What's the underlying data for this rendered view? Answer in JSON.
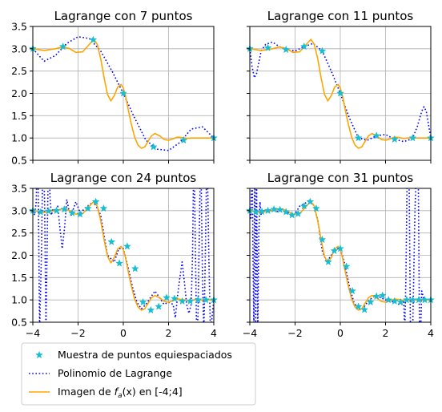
{
  "colors": {
    "samples": "#17becf",
    "lagrange": "#0000ff",
    "function": "#ffa500",
    "grid": "#b0b0b0"
  },
  "legend": {
    "placement": "bottom-left",
    "entries": [
      {
        "key": "samples",
        "label": "Muestra de puntos equiespaciados"
      },
      {
        "key": "lagrange",
        "label": "Polinomio de Lagrange"
      },
      {
        "key": "function",
        "label_prefix": "Imagen de ",
        "label_func": "f",
        "label_sub": "a",
        "label_suffix": "(x) en [-4;4]"
      }
    ]
  },
  "chart_data": [
    {
      "type": "line",
      "title": "Lagrange con 7 puntos",
      "xlim": [
        -4,
        4
      ],
      "ylim": [
        0.5,
        3.5
      ],
      "grid": true,
      "xticks": [
        "-4",
        "-2",
        "0",
        "2",
        "4"
      ],
      "xtick_values": [
        -4,
        -2,
        0,
        2,
        4
      ],
      "show_xticklabels": false,
      "yticks": [
        "0.5",
        "1.0",
        "1.5",
        "2.0",
        "2.5",
        "3.0",
        "3.5"
      ],
      "ytick_values": [
        0.5,
        1.0,
        1.5,
        2.0,
        2.5,
        3.0,
        3.5
      ],
      "show_yticklabels": true,
      "samples": {
        "x": [
          -4.0,
          -2.667,
          -1.333,
          0.0,
          1.333,
          2.667,
          4.0
        ],
        "y": [
          3.0,
          3.05,
          3.2,
          2.0,
          0.8,
          0.95,
          1.0
        ]
      },
      "lagrange": {
        "x": [
          -4.0,
          -3.5,
          -3.0,
          -2.5,
          -2.0,
          -1.5,
          -1.0,
          -0.5,
          0.0,
          0.5,
          1.0,
          1.5,
          2.0,
          2.5,
          3.0,
          3.5,
          4.0
        ],
        "y": [
          3.0,
          2.72,
          2.85,
          3.12,
          3.27,
          3.23,
          2.95,
          2.5,
          2.0,
          1.45,
          0.95,
          0.75,
          0.72,
          0.9,
          1.2,
          1.25,
          1.0
        ]
      },
      "function": {
        "x": [
          -4.0,
          -3.5,
          -3.0,
          -2.7,
          -2.4,
          -2.1,
          -1.8,
          -1.5,
          -1.3,
          -1.15,
          -1.0,
          -0.85,
          -0.7,
          -0.55,
          -0.4,
          -0.25,
          -0.1,
          0.0,
          0.1,
          0.2,
          0.35,
          0.5,
          0.65,
          0.8,
          0.95,
          1.1,
          1.25,
          1.4,
          1.6,
          1.8,
          2.0,
          2.2,
          2.4,
          2.6,
          2.8,
          3.0,
          3.3,
          3.6,
          4.0
        ],
        "y": [
          3.0,
          2.96,
          3.0,
          3.04,
          3.01,
          2.92,
          2.93,
          3.1,
          3.21,
          3.1,
          2.78,
          2.35,
          1.98,
          1.83,
          1.95,
          2.14,
          2.2,
          2.12,
          1.94,
          1.68,
          1.32,
          1.02,
          0.84,
          0.77,
          0.8,
          0.93,
          1.05,
          1.1,
          1.05,
          0.97,
          0.95,
          0.98,
          1.02,
          1.01,
          0.99,
          1.0,
          1.0,
          1.0,
          1.0
        ]
      }
    },
    {
      "type": "line",
      "title": "Lagrange con 11 puntos",
      "xlim": [
        -4,
        4
      ],
      "ylim": [
        0.5,
        3.5
      ],
      "grid": true,
      "xticks": [
        "-4",
        "-2",
        "0",
        "2",
        "4"
      ],
      "xtick_values": [
        -4,
        -2,
        0,
        2,
        4
      ],
      "show_xticklabels": false,
      "yticks": [
        "0.5",
        "1.0",
        "1.5",
        "2.0",
        "2.5",
        "3.0",
        "3.5"
      ],
      "ytick_values": [
        0.5,
        1.0,
        1.5,
        2.0,
        2.5,
        3.0,
        3.5
      ],
      "show_yticklabels": false,
      "samples": {
        "x": [
          -4.0,
          -3.2,
          -2.4,
          -1.6,
          -0.8,
          0.0,
          0.8,
          1.6,
          2.4,
          3.2,
          4.0
        ],
        "y": [
          3.0,
          3.02,
          2.98,
          3.05,
          2.95,
          2.0,
          1.0,
          1.05,
          0.97,
          1.0,
          1.0
        ]
      },
      "lagrange": {
        "x": [
          -4.0,
          -3.9,
          -3.8,
          -3.7,
          -3.6,
          -3.5,
          -3.3,
          -3.0,
          -2.7,
          -2.4,
          -2.0,
          -1.6,
          -1.2,
          -0.8,
          -0.4,
          0.0,
          0.4,
          0.8,
          1.2,
          1.6,
          2.0,
          2.4,
          2.8,
          3.0,
          3.2,
          3.4,
          3.6,
          3.7,
          3.8,
          3.9,
          4.0
        ],
        "y": [
          3.0,
          2.6,
          2.35,
          2.45,
          2.7,
          2.95,
          3.1,
          3.15,
          3.05,
          2.98,
          2.95,
          3.05,
          3.12,
          2.95,
          2.5,
          2.0,
          1.45,
          1.0,
          0.95,
          1.05,
          1.08,
          0.97,
          0.92,
          0.95,
          1.0,
          1.25,
          1.6,
          1.7,
          1.6,
          1.3,
          1.0
        ]
      },
      "function": {
        "x": [
          -4.0,
          -3.5,
          -3.0,
          -2.7,
          -2.4,
          -2.1,
          -1.8,
          -1.5,
          -1.3,
          -1.15,
          -1.0,
          -0.85,
          -0.7,
          -0.55,
          -0.4,
          -0.25,
          -0.1,
          0.0,
          0.1,
          0.2,
          0.35,
          0.5,
          0.65,
          0.8,
          0.95,
          1.1,
          1.25,
          1.4,
          1.6,
          1.8,
          2.0,
          2.2,
          2.4,
          2.6,
          2.8,
          3.0,
          3.3,
          3.6,
          4.0
        ],
        "y": [
          3.0,
          2.96,
          3.0,
          3.04,
          3.01,
          2.92,
          2.93,
          3.1,
          3.21,
          3.1,
          2.78,
          2.35,
          1.98,
          1.83,
          1.95,
          2.14,
          2.2,
          2.12,
          1.94,
          1.68,
          1.32,
          1.02,
          0.84,
          0.77,
          0.8,
          0.93,
          1.05,
          1.1,
          1.05,
          0.97,
          0.95,
          0.98,
          1.02,
          1.01,
          0.99,
          1.0,
          1.0,
          1.0,
          1.0
        ]
      }
    },
    {
      "type": "line",
      "title": "Lagrange con 24 puntos",
      "xlim": [
        -4,
        4
      ],
      "ylim": [
        0.5,
        3.5
      ],
      "grid": true,
      "xticks": [
        "−4",
        "−2",
        "0",
        "2",
        "4"
      ],
      "xtick_values": [
        -4,
        -2,
        0,
        2,
        4
      ],
      "show_xticklabels": true,
      "yticks": [
        "0.5",
        "1.0",
        "1.5",
        "2.0",
        "2.5",
        "3.0",
        "3.5"
      ],
      "ytick_values": [
        0.5,
        1.0,
        1.5,
        2.0,
        2.5,
        3.0,
        3.5
      ],
      "show_yticklabels": true,
      "samples": {
        "x": [
          -4.0,
          -3.652,
          -3.304,
          -2.957,
          -2.609,
          -2.261,
          -1.913,
          -1.565,
          -1.217,
          -0.87,
          -0.522,
          -0.174,
          0.174,
          0.522,
          0.87,
          1.217,
          1.565,
          1.913,
          2.261,
          2.609,
          2.957,
          3.304,
          3.652,
          4.0
        ],
        "y": [
          3.0,
          2.97,
          2.99,
          3.0,
          3.03,
          2.95,
          2.92,
          3.05,
          3.2,
          3.05,
          2.3,
          1.82,
          2.2,
          1.7,
          0.95,
          0.77,
          0.85,
          1.05,
          1.03,
          0.97,
          0.97,
          1.0,
          1.0,
          1.0
        ]
      },
      "lagrange": {
        "x": [
          -4.0,
          -3.92,
          -3.85,
          -3.8,
          -3.75,
          -3.7,
          -3.62,
          -3.55,
          -3.48,
          -3.42,
          -3.36,
          -3.3,
          -3.24,
          -3.18,
          -3.1,
          -3.0,
          -2.9,
          -2.8,
          -2.7,
          -2.6,
          -2.5,
          -2.4,
          -2.3,
          -2.1,
          -1.9,
          -1.6,
          -1.3,
          -1.0,
          -0.7,
          -0.4,
          -0.2,
          0.0,
          0.2,
          0.4,
          0.6,
          0.8,
          1.0,
          1.2,
          1.4,
          1.6,
          1.8,
          2.0,
          2.2,
          2.3,
          2.4,
          2.5,
          2.6,
          2.7,
          2.8,
          2.9,
          3.0,
          3.06,
          3.12,
          3.18,
          3.24,
          3.3,
          3.36,
          3.42,
          3.5,
          3.56,
          3.62,
          3.7,
          3.78,
          3.85,
          3.92,
          4.0
        ],
        "y": [
          3.0,
          2.9,
          3.2,
          4.5,
          3.0,
          0.3,
          2.0,
          4.5,
          3.2,
          0.3,
          2.5,
          4.5,
          3.3,
          2.9,
          3.05,
          3.0,
          3.1,
          2.6,
          2.15,
          2.6,
          3.25,
          3.0,
          2.9,
          3.2,
          2.95,
          3.1,
          3.2,
          2.9,
          2.0,
          1.85,
          2.15,
          2.15,
          1.75,
          1.3,
          0.95,
          0.8,
          0.9,
          1.05,
          1.2,
          1.05,
          0.9,
          0.95,
          0.9,
          0.6,
          1.1,
          1.5,
          1.85,
          1.4,
          0.9,
          0.7,
          0.9,
          2.0,
          4.5,
          2.4,
          0.3,
          0.6,
          2.5,
          4.5,
          1.5,
          0.3,
          1.8,
          4.5,
          2.0,
          0.3,
          0.6,
          1.0
        ]
      },
      "function": {
        "x": [
          -4.0,
          -3.5,
          -3.0,
          -2.7,
          -2.4,
          -2.1,
          -1.8,
          -1.5,
          -1.3,
          -1.15,
          -1.0,
          -0.85,
          -0.7,
          -0.55,
          -0.4,
          -0.25,
          -0.1,
          0.0,
          0.1,
          0.2,
          0.35,
          0.5,
          0.65,
          0.8,
          0.95,
          1.1,
          1.25,
          1.4,
          1.6,
          1.8,
          2.0,
          2.2,
          2.4,
          2.6,
          2.8,
          3.0,
          3.3,
          3.6,
          4.0
        ],
        "y": [
          3.0,
          2.96,
          3.0,
          3.04,
          3.01,
          2.92,
          2.93,
          3.1,
          3.21,
          3.1,
          2.78,
          2.35,
          1.98,
          1.83,
          1.95,
          2.14,
          2.2,
          2.12,
          1.94,
          1.68,
          1.32,
          1.02,
          0.84,
          0.77,
          0.8,
          0.93,
          1.05,
          1.1,
          1.05,
          0.97,
          0.95,
          0.98,
          1.02,
          1.01,
          0.99,
          1.0,
          1.0,
          1.0,
          1.0
        ]
      }
    },
    {
      "type": "line",
      "title": "Lagrange con 31 puntos",
      "xlim": [
        -4,
        4
      ],
      "ylim": [
        0.5,
        3.5
      ],
      "grid": true,
      "xticks": [
        "−4",
        "−2",
        "0",
        "2",
        "4"
      ],
      "xtick_values": [
        -4,
        -2,
        0,
        2,
        4
      ],
      "show_xticklabels": true,
      "yticks": [
        "0.5",
        "1.0",
        "1.5",
        "2.0",
        "2.5",
        "3.0",
        "3.5"
      ],
      "ytick_values": [
        0.5,
        1.0,
        1.5,
        2.0,
        2.5,
        3.0,
        3.5
      ],
      "show_yticklabels": false,
      "samples": {
        "x": [
          -4.0,
          -3.733,
          -3.467,
          -3.2,
          -2.933,
          -2.667,
          -2.4,
          -2.133,
          -1.867,
          -1.6,
          -1.333,
          -1.067,
          -0.8,
          -0.533,
          -0.267,
          0.0,
          0.267,
          0.533,
          0.8,
          1.067,
          1.333,
          1.6,
          1.867,
          2.133,
          2.4,
          2.667,
          2.933,
          3.2,
          3.467,
          3.733,
          4.0
        ],
        "y": [
          3.0,
          2.97,
          2.98,
          3.0,
          3.03,
          3.02,
          2.97,
          2.9,
          2.93,
          3.1,
          3.2,
          3.05,
          2.35,
          1.85,
          2.1,
          2.15,
          1.75,
          1.2,
          0.85,
          0.78,
          0.95,
          1.08,
          1.1,
          1.0,
          0.97,
          0.95,
          1.0,
          1.0,
          1.0,
          1.0,
          1.0
        ]
      },
      "lagrange": {
        "x": [
          -4.0,
          -3.95,
          -3.9,
          -3.86,
          -3.82,
          -3.78,
          -3.74,
          -3.7,
          -3.65,
          -3.6,
          -3.55,
          -3.5,
          -3.4,
          -3.3,
          -3.2,
          -3.0,
          -2.8,
          -2.6,
          -2.4,
          -2.2,
          -2.0,
          -1.8,
          -1.6,
          -1.4,
          -1.2,
          -1.0,
          -0.8,
          -0.6,
          -0.4,
          -0.2,
          0.0,
          0.2,
          0.4,
          0.6,
          0.8,
          1.0,
          1.2,
          1.4,
          1.6,
          1.8,
          2.0,
          2.2,
          2.4,
          2.6,
          2.7,
          2.8,
          2.85,
          2.9,
          2.95,
          3.0,
          3.05,
          3.1,
          3.2,
          3.3,
          3.4,
          3.45,
          3.5,
          3.55,
          3.6,
          3.7,
          3.8,
          3.9,
          4.0
        ],
        "y": [
          3.0,
          2.8,
          4.5,
          2.0,
          0.3,
          4.5,
          0.3,
          3.5,
          0.3,
          2.5,
          3.2,
          2.9,
          3.0,
          3.0,
          3.0,
          3.02,
          2.98,
          3.05,
          3.0,
          2.9,
          2.93,
          3.1,
          3.15,
          3.22,
          3.15,
          2.8,
          2.1,
          1.85,
          2.0,
          2.15,
          2.15,
          1.8,
          1.3,
          0.95,
          0.78,
          0.8,
          0.95,
          1.05,
          1.1,
          1.05,
          1.0,
          0.97,
          0.95,
          0.9,
          0.9,
          1.0,
          0.3,
          1.5,
          3.6,
          4.5,
          3.3,
          0.3,
          0.3,
          3.0,
          4.5,
          3.6,
          0.4,
          0.3,
          1.2,
          1.0,
          1.0,
          1.0,
          1.0
        ]
      },
      "function": {
        "x": [
          -4.0,
          -3.5,
          -3.0,
          -2.7,
          -2.4,
          -2.1,
          -1.8,
          -1.5,
          -1.3,
          -1.15,
          -1.0,
          -0.85,
          -0.7,
          -0.55,
          -0.4,
          -0.25,
          -0.1,
          0.0,
          0.1,
          0.2,
          0.35,
          0.5,
          0.65,
          0.8,
          0.95,
          1.1,
          1.25,
          1.4,
          1.6,
          1.8,
          2.0,
          2.2,
          2.4,
          2.6,
          2.8,
          3.0,
          3.3,
          3.6,
          4.0
        ],
        "y": [
          3.0,
          2.96,
          3.0,
          3.04,
          3.01,
          2.92,
          2.93,
          3.1,
          3.21,
          3.1,
          2.78,
          2.35,
          1.98,
          1.83,
          1.95,
          2.14,
          2.2,
          2.12,
          1.94,
          1.68,
          1.32,
          1.02,
          0.84,
          0.77,
          0.8,
          0.93,
          1.05,
          1.1,
          1.05,
          0.97,
          0.95,
          0.98,
          1.02,
          1.01,
          0.99,
          1.0,
          1.0,
          1.0,
          1.0
        ]
      }
    }
  ]
}
